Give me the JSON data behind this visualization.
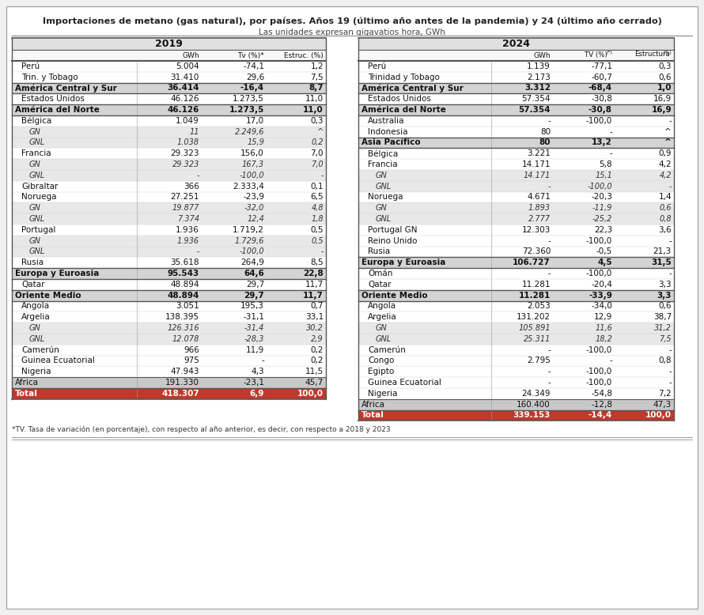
{
  "title": "Importaciones de metano (gas natural), por países. Años 19 (último año antes de la pandemia) y 24 (último año cerrado)",
  "subtitle": "Las unidades expresan gigavatios hora, GWh",
  "footnote": "*TV. Tasa de variación (en porcentaje), con respecto al año anterior, es decir, con respecto a 2018 y 2023",
  "left_table": {
    "year": "2019",
    "col_headers": [
      "GWh",
      "Tv (%)*",
      "Estruc. (%)"
    ],
    "rows": [
      {
        "label": "Perú",
        "type": "country",
        "values": [
          "5.004",
          "-74,1",
          "1,2"
        ]
      },
      {
        "label": "Trin. y Tobago",
        "type": "country",
        "values": [
          "31.410",
          "29,6",
          "7,5"
        ]
      },
      {
        "label": "América Central y Sur",
        "type": "region",
        "values": [
          "36.414",
          "-16,4",
          "8,7"
        ]
      },
      {
        "label": "Estados Unidos",
        "type": "country",
        "values": [
          "46.126",
          "1.273,5",
          "11,0"
        ]
      },
      {
        "label": "América del Norte",
        "type": "region",
        "values": [
          "46.126",
          "1.273,5",
          "11,0"
        ]
      },
      {
        "label": "Bélgica",
        "type": "country",
        "values": [
          "1.049",
          "17,0",
          "0,3"
        ]
      },
      {
        "label": "GN",
        "type": "gnx",
        "values": [
          "11",
          "2.249,6",
          "^"
        ]
      },
      {
        "label": "GNL",
        "type": "gnx",
        "values": [
          "1.038",
          "15,9",
          "0,2"
        ]
      },
      {
        "label": "Francia",
        "type": "country",
        "values": [
          "29.323",
          "156,0",
          "7,0"
        ]
      },
      {
        "label": "GN",
        "type": "gnx",
        "values": [
          "29.323",
          "167,3",
          "7,0"
        ]
      },
      {
        "label": "GNL",
        "type": "gnx",
        "values": [
          "-",
          "-100,0",
          "-"
        ]
      },
      {
        "label": "Gibraltar",
        "type": "country",
        "values": [
          "366",
          "2.333,4",
          "0,1"
        ]
      },
      {
        "label": "Noruega",
        "type": "country",
        "values": [
          "27.251",
          "-23,9",
          "6,5"
        ]
      },
      {
        "label": "GN",
        "type": "gnx",
        "values": [
          "19.877",
          "-32,0",
          "4,8"
        ]
      },
      {
        "label": "GNL",
        "type": "gnx",
        "values": [
          "7.374",
          "12,4",
          "1,8"
        ]
      },
      {
        "label": "Portugal",
        "type": "country",
        "values": [
          "1.936",
          "1.719,2",
          "0,5"
        ]
      },
      {
        "label": "GN",
        "type": "gnx",
        "values": [
          "1.936",
          "1.729,6",
          "0,5"
        ]
      },
      {
        "label": "GNL",
        "type": "gnx",
        "values": [
          "-",
          "-100,0",
          "-"
        ]
      },
      {
        "label": "Rusia",
        "type": "country",
        "values": [
          "35.618",
          "264,9",
          "8,5"
        ]
      },
      {
        "label": "Europa y Euroasia",
        "type": "region",
        "values": [
          "95.543",
          "64,6",
          "22,8"
        ]
      },
      {
        "label": "Qatar",
        "type": "country",
        "values": [
          "48.894",
          "29,7",
          "11,7"
        ]
      },
      {
        "label": "Oriente Medio",
        "type": "region",
        "values": [
          "48.894",
          "29,7",
          "11,7"
        ]
      },
      {
        "label": "Angola",
        "type": "country",
        "values": [
          "3.051",
          "195,3",
          "0,7"
        ]
      },
      {
        "label": "Argelia",
        "type": "country",
        "values": [
          "138.395",
          "-31,1",
          "33,1"
        ]
      },
      {
        "label": "GN",
        "type": "gnx",
        "values": [
          "126.316",
          "-31,4",
          "30,2"
        ]
      },
      {
        "label": "GNL",
        "type": "gnx",
        "values": [
          "12.078",
          "-28,3",
          "2,9"
        ]
      },
      {
        "label": "Camerún",
        "type": "country",
        "values": [
          "966",
          "11,9",
          "0,2"
        ]
      },
      {
        "label": "Guinea Ecuatorial",
        "type": "country",
        "values": [
          "975",
          "-",
          "0,2"
        ]
      },
      {
        "label": "Nigeria",
        "type": "country",
        "values": [
          "47.943",
          "4,3",
          "11,5"
        ]
      },
      {
        "label": "África",
        "type": "africa",
        "values": [
          "191.330",
          "-23,1",
          "45,7"
        ]
      },
      {
        "label": "Total",
        "type": "total",
        "values": [
          "418.307",
          "6,9",
          "100,0"
        ]
      }
    ]
  },
  "right_table": {
    "year": "2024",
    "col_headers": [
      "GWh",
      "TV (%)⁻",
      "Estructura(%)"
    ],
    "rows": [
      {
        "label": "Perú",
        "type": "country",
        "values": [
          "1.139",
          "-77,1",
          "0,3"
        ]
      },
      {
        "label": "Trinidad y Tobago",
        "type": "country",
        "values": [
          "2.173",
          "-60,7",
          "0,6"
        ]
      },
      {
        "label": "América Central y Sur",
        "type": "region",
        "values": [
          "3.312",
          "-68,4",
          "1,0"
        ]
      },
      {
        "label": "Estados Unidos",
        "type": "country",
        "values": [
          "57.354",
          "-30,8",
          "16,9"
        ]
      },
      {
        "label": "América del Norte",
        "type": "region",
        "values": [
          "57.354",
          "-30,8",
          "16,9"
        ]
      },
      {
        "label": "Australia",
        "type": "country",
        "values": [
          "-",
          "-100,0",
          "-"
        ]
      },
      {
        "label": "Indonesia",
        "type": "country",
        "values": [
          "80",
          "-",
          "^"
        ]
      },
      {
        "label": "Asia Pacífico",
        "type": "region",
        "values": [
          "80",
          "13,2",
          "^"
        ]
      },
      {
        "label": "Bélgica",
        "type": "country",
        "values": [
          "3.221",
          "-",
          "0,9"
        ]
      },
      {
        "label": "Francia",
        "type": "country",
        "values": [
          "14.171",
          "5,8",
          "4,2"
        ]
      },
      {
        "label": "GN",
        "type": "gnx",
        "values": [
          "14.171",
          "15,1",
          "4,2"
        ]
      },
      {
        "label": "GNL",
        "type": "gnx",
        "values": [
          "-",
          "-100,0",
          "-"
        ]
      },
      {
        "label": "Noruega",
        "type": "country",
        "values": [
          "4.671",
          "-20,3",
          "1,4"
        ]
      },
      {
        "label": "GN",
        "type": "gnx",
        "values": [
          "1.893",
          "-11,9",
          "0,6"
        ]
      },
      {
        "label": "GNL",
        "type": "gnx",
        "values": [
          "2.777",
          "-25,2",
          "0,8"
        ]
      },
      {
        "label": "Portugal GN",
        "type": "country",
        "values": [
          "12.303",
          "22,3",
          "3,6"
        ]
      },
      {
        "label": "Reino Unido",
        "type": "country",
        "values": [
          "-",
          "-100,0",
          "-"
        ]
      },
      {
        "label": "Rusia",
        "type": "country",
        "values": [
          "72.360",
          "-0,5",
          "21,3"
        ]
      },
      {
        "label": "Europa y Euroasia",
        "type": "region",
        "values": [
          "106.727",
          "4,5",
          "31,5"
        ]
      },
      {
        "label": "Omán",
        "type": "country",
        "values": [
          "-",
          "-100,0",
          "-"
        ]
      },
      {
        "label": "Qatar",
        "type": "country",
        "values": [
          "11.281",
          "-20,4",
          "3,3"
        ]
      },
      {
        "label": "Oriente Medio",
        "type": "region",
        "values": [
          "11.281",
          "-33,9",
          "3,3"
        ]
      },
      {
        "label": "Angola",
        "type": "country",
        "values": [
          "2.053",
          "-34,0",
          "0,6"
        ]
      },
      {
        "label": "Argelia",
        "type": "country",
        "values": [
          "131.202",
          "12,9",
          "38,7"
        ]
      },
      {
        "label": "GN",
        "type": "gnx",
        "values": [
          "105.891",
          "11,6",
          "31,2"
        ]
      },
      {
        "label": "GNL",
        "type": "gnx",
        "values": [
          "25.311",
          "18,2",
          "7,5"
        ]
      },
      {
        "label": "Camerún",
        "type": "country",
        "values": [
          "-",
          "-100,0",
          "-"
        ]
      },
      {
        "label": "Congo",
        "type": "country",
        "values": [
          "2.795",
          "-",
          "0,8"
        ]
      },
      {
        "label": "Egipto",
        "type": "country",
        "values": [
          "-",
          "-100,0",
          "-"
        ]
      },
      {
        "label": "Guinea Ecuatorial",
        "type": "country",
        "values": [
          "-",
          "-100,0",
          "-"
        ]
      },
      {
        "label": "Nigeria",
        "type": "country",
        "values": [
          "24.349",
          "-54,8",
          "7,2"
        ]
      },
      {
        "label": "África",
        "type": "africa",
        "values": [
          "160.400",
          "-12,8",
          "47,3"
        ]
      },
      {
        "label": "Total",
        "type": "total",
        "values": [
          "339.153",
          "-14,4",
          "100,0"
        ]
      }
    ]
  }
}
